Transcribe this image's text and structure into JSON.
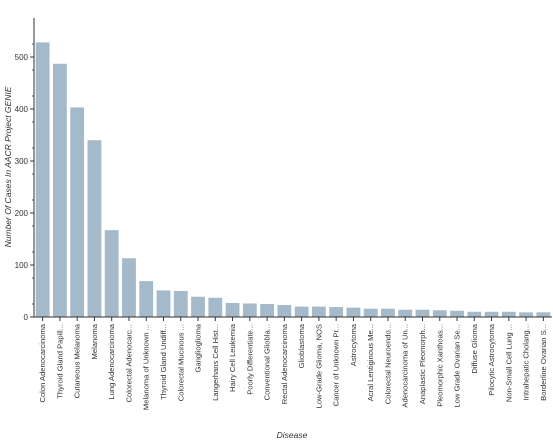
{
  "chart_data": {
    "type": "bar",
    "xlabel": "Disease",
    "ylabel": "Number Of Cases In AACR Project GENIE",
    "ylim": [
      0,
      575
    ],
    "yticks": [
      0,
      100,
      200,
      300,
      400,
      500
    ],
    "bar_color": "#a4b9c9",
    "grid": false,
    "categories": [
      "Colon Adenocarcinoma",
      "Thyroid Gland Papill...",
      "Cutaneous Melanoma",
      "Melanoma",
      "Lung Adenocarcinoma",
      "Colorectal Adenocarc...",
      "Melanoma of Unknown ...",
      "Thyroid Gland Undiff...",
      "Colorectal Mucinous ...",
      "Ganglioglioma",
      "Langerhans Cell Hist...",
      "Hairy Cell Leukemia",
      "Poorly Differentiate...",
      "Conventional Glioblа...",
      "Rectal Adenocarcinoma",
      "Glioblastoma",
      "Low-Grade Glioma, NOS",
      "Cancer of Unknown Pr...",
      "Astrocytoma",
      "Acral Lentiginous Me...",
      "Colorectal Neuroendo...",
      "Adenocarcinoma of Un...",
      "Anaplastic Pleomorph...",
      "Pleomorphic Xanthoas...",
      "Low Grade Ovarian Se...",
      "Diffuse Glioma",
      "Pilocytic Astrocytoma",
      "Non-Small Cell Lung ...",
      "Intrahepatic Cholang...",
      "Borderline Ovarian S..."
    ],
    "values": [
      528,
      487,
      403,
      340,
      167,
      113,
      69,
      51,
      50,
      39,
      37,
      27,
      26,
      25,
      23,
      20,
      20,
      19,
      18,
      16,
      16,
      14,
      14,
      13,
      12,
      10,
      10,
      10,
      9,
      9
    ]
  }
}
